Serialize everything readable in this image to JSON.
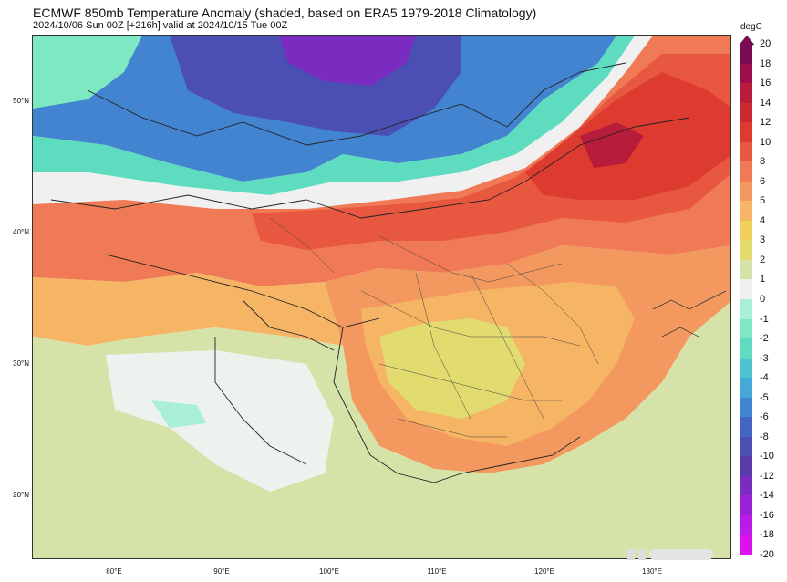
{
  "header": {
    "title": "ECMWF 850mb Temperature Anomaly (shaded, based on ERA5 1979-2018 Climatology)",
    "subtitle": "2024/10/06 Sun 00Z [+216h] valid at 2024/10/15 Tue 00Z"
  },
  "axes": {
    "lat_labels": [
      "50°N",
      "40°N",
      "30°N",
      "20°N"
    ],
    "lon_labels": [
      "80°E",
      "90°E",
      "100°E",
      "110°E",
      "120°E",
      "130°E"
    ]
  },
  "colorbar": {
    "unit": "degC",
    "labels": [
      "20",
      "18",
      "16",
      "14",
      "12",
      "10",
      "8",
      "6",
      "5",
      "4",
      "3",
      "2",
      "1",
      "0",
      "-1",
      "-2",
      "-3",
      "-4",
      "-5",
      "-6",
      "-8",
      "-10",
      "-12",
      "-14",
      "-16",
      "-18",
      "-20"
    ],
    "colors": [
      "#7a0a52",
      "#9c0f4a",
      "#b71c3a",
      "#cc2a30",
      "#dd3a30",
      "#e85840",
      "#ef7a55",
      "#f3985e",
      "#f6b565",
      "#f0cf5a",
      "#e2dc70",
      "#d6e3a8",
      "#f0f0f0",
      "#a8efd5",
      "#7ee8c2",
      "#5edcc0",
      "#4cc5cf",
      "#45a8d8",
      "#4284d0",
      "#4466c2",
      "#4b4eb3",
      "#5a3aa8",
      "#7a2cc0",
      "#9a22d8",
      "#bb1ae8",
      "#dd10f0"
    ]
  },
  "map": {
    "ocean_color": "#eef2ee",
    "regions": [
      {
        "name": "north-cold-core",
        "color": "#4b4eb3"
      },
      {
        "name": "north-blue",
        "color": "#4284d0"
      },
      {
        "name": "teal-band",
        "color": "#5edcc0"
      },
      {
        "name": "warm-belt",
        "color": "#e85840"
      },
      {
        "name": "northeast-hot",
        "color": "#dd3a30"
      },
      {
        "name": "china-warm",
        "color": "#f6b565"
      },
      {
        "name": "south-mild",
        "color": "#d6e3a8"
      }
    ]
  }
}
